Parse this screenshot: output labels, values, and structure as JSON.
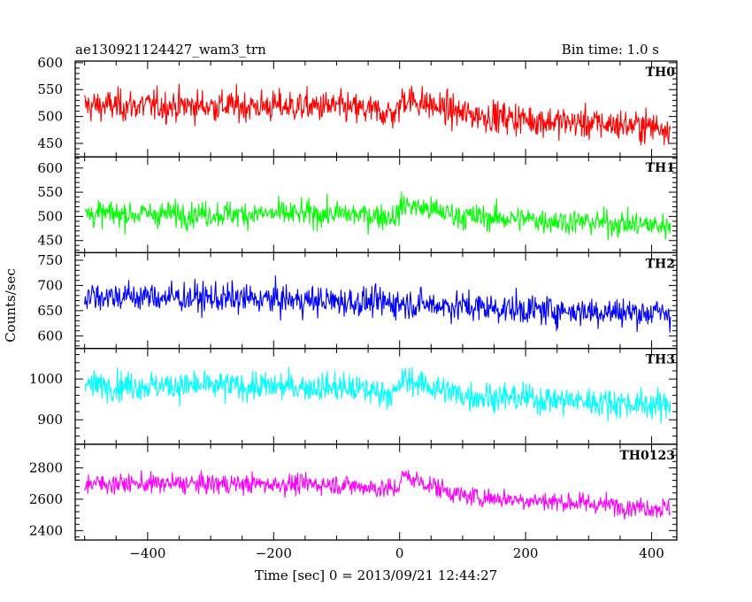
{
  "header": {
    "title": "ae130921124427_wam3_trn",
    "bin_time": "Bin time: 1.0 s"
  },
  "chart_data": {
    "type": "line",
    "x_label": "Time [sec] 0 = 2013/09/21 12:44:27",
    "y_label": "Counts/sec",
    "xlim": [
      -515,
      440
    ],
    "x_ticks": [
      -400,
      -200,
      0,
      200,
      400
    ],
    "x_range_data": [
      -500,
      430
    ],
    "panels": [
      {
        "name": "TH0",
        "color": "#ff0000",
        "ylim": [
          425,
          603
        ],
        "y_ticks": [
          450,
          500,
          550,
          600
        ],
        "trend": [
          {
            "t": -500,
            "v": 520
          },
          {
            "t": -300,
            "v": 520
          },
          {
            "t": -100,
            "v": 518
          },
          {
            "t": -5,
            "v": 505
          },
          {
            "t": 5,
            "v": 535
          },
          {
            "t": 100,
            "v": 505
          },
          {
            "t": 250,
            "v": 490
          },
          {
            "t": 430,
            "v": 480
          }
        ],
        "noise_sigma": 30
      },
      {
        "name": "TH1",
        "color": "#00ff00",
        "ylim": [
          425,
          623
        ],
        "y_ticks": [
          450,
          500,
          550,
          600
        ],
        "trend": [
          {
            "t": -500,
            "v": 505
          },
          {
            "t": -100,
            "v": 505
          },
          {
            "t": -5,
            "v": 500
          },
          {
            "t": 5,
            "v": 525
          },
          {
            "t": 100,
            "v": 500
          },
          {
            "t": 430,
            "v": 480
          }
        ],
        "noise_sigma": 27
      },
      {
        "name": "TH2",
        "color": "#0000ff",
        "ylim": [
          575,
          765
        ],
        "y_ticks": [
          600,
          650,
          700,
          750
        ],
        "trend": [
          {
            "t": -500,
            "v": 680
          },
          {
            "t": -200,
            "v": 672
          },
          {
            "t": 0,
            "v": 665
          },
          {
            "t": 200,
            "v": 652
          },
          {
            "t": 430,
            "v": 645
          }
        ],
        "noise_sigma": 30
      },
      {
        "name": "TH3",
        "color": "#00ffff",
        "ylim": [
          840,
          1075
        ],
        "y_ticks": [
          900,
          1000
        ],
        "trend": [
          {
            "t": -500,
            "v": 985
          },
          {
            "t": -100,
            "v": 980
          },
          {
            "t": -5,
            "v": 965
          },
          {
            "t": 5,
            "v": 1000
          },
          {
            "t": 100,
            "v": 960
          },
          {
            "t": 430,
            "v": 935
          }
        ],
        "noise_sigma": 36
      },
      {
        "name": "TH0123",
        "color": "#ff00ff",
        "ylim": [
          2340,
          2950
        ],
        "y_ticks": [
          2400,
          2600,
          2800
        ],
        "trend": [
          {
            "t": -500,
            "v": 2700
          },
          {
            "t": -100,
            "v": 2695
          },
          {
            "t": -5,
            "v": 2660
          },
          {
            "t": 5,
            "v": 2750
          },
          {
            "t": 100,
            "v": 2620
          },
          {
            "t": 430,
            "v": 2540
          }
        ],
        "noise_sigma": 65
      }
    ]
  }
}
